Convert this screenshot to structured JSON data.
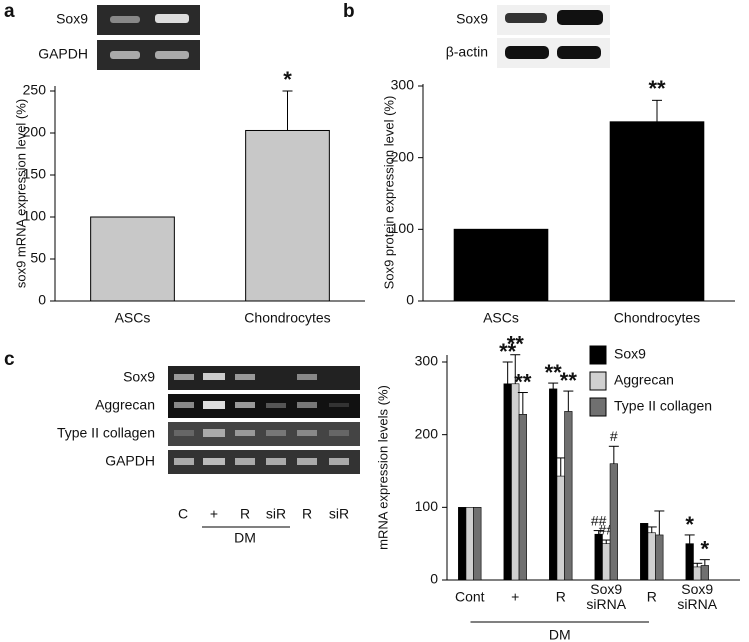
{
  "chart_data": [
    {
      "type": "bar",
      "panel": "a",
      "blot_rows": [
        "Sox9",
        "GAPDH"
      ],
      "y_label": "sox9 mRNA expression level (%)",
      "categories": [
        "ASCs",
        "Chondrocytes"
      ],
      "values": [
        100,
        203
      ],
      "errors": [
        null,
        47
      ],
      "annotations": [
        null,
        "*"
      ],
      "color": "#c8c8c8",
      "ylim": [
        0,
        250
      ],
      "yticks": [
        0,
        50,
        100,
        150,
        200,
        250
      ]
    },
    {
      "type": "bar",
      "panel": "b",
      "blot_rows": [
        "Sox9",
        "β-actin"
      ],
      "y_label": "Sox9 protein expression level (%)",
      "categories": [
        "ASCs",
        "Chondrocytes"
      ],
      "values": [
        100,
        250
      ],
      "errors": [
        null,
        30
      ],
      "annotations": [
        null,
        "**"
      ],
      "color": "#000000",
      "ylim": [
        0,
        300
      ],
      "yticks": [
        0,
        100,
        200,
        300
      ]
    },
    {
      "type": "grouped_bar",
      "panel": "c",
      "blot_rows": [
        "Sox9",
        "Aggrecan",
        "Type II collagen",
        "GAPDH"
      ],
      "blot_lanes": [
        "C",
        "+",
        "R",
        "siR",
        "R",
        "siR"
      ],
      "blot_group_label": "DM",
      "y_label": "mRNA expression levels (%)",
      "categories": [
        "Cont",
        "+",
        "R",
        "Sox9 siRNA",
        "R",
        "Sox9 siRNA"
      ],
      "group_label": "DM",
      "series": [
        {
          "name": "Sox9",
          "color": "#000000",
          "values": [
            100,
            270,
            263,
            63,
            78,
            50
          ],
          "errors": [
            null,
            30,
            8,
            5,
            null,
            12
          ],
          "annotations": [
            null,
            "**",
            "**",
            "##",
            null,
            "*"
          ]
        },
        {
          "name": "Aggrecan",
          "color": "#d0d0d0",
          "values": [
            100,
            270,
            143,
            50,
            65,
            18
          ],
          "errors": [
            null,
            40,
            25,
            5,
            8,
            5
          ],
          "annotations": [
            null,
            "**",
            null,
            "##",
            null,
            null
          ]
        },
        {
          "name": "Type II collagen",
          "color": "#707070",
          "values": [
            100,
            228,
            232,
            160,
            62,
            20
          ],
          "errors": [
            null,
            30,
            28,
            24,
            33,
            8
          ],
          "annotations": [
            null,
            "**",
            "**",
            "#",
            null,
            "*"
          ]
        }
      ],
      "legend": "top-right",
      "ylim": [
        0,
        300
      ],
      "yticks": [
        0,
        100,
        200,
        300
      ]
    }
  ]
}
